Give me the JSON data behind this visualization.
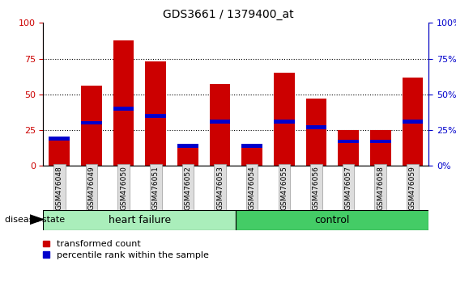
{
  "title": "GDS3661 / 1379400_at",
  "samples": [
    "GSM476048",
    "GSM476049",
    "GSM476050",
    "GSM476051",
    "GSM476052",
    "GSM476053",
    "GSM476054",
    "GSM476055",
    "GSM476056",
    "GSM476057",
    "GSM476058",
    "GSM476059"
  ],
  "red_values": [
    19,
    56,
    88,
    73,
    15,
    57,
    15,
    65,
    47,
    25,
    25,
    62
  ],
  "blue_values": [
    19,
    30,
    40,
    35,
    14,
    31,
    14,
    31,
    27,
    17,
    17,
    31
  ],
  "heart_failure_count": 6,
  "control_count": 6,
  "ylim": [
    0,
    100
  ],
  "y_ticks": [
    0,
    25,
    50,
    75,
    100
  ],
  "bar_color_red": "#CC0000",
  "bar_color_blue": "#0000CC",
  "heart_failure_color": "#AAEEBB",
  "control_color": "#44CC66",
  "axis_label_color_left": "#CC0000",
  "axis_label_color_right": "#0000CC",
  "tick_bg_color": "#DDDDDD",
  "legend_red_label": "transformed count",
  "legend_blue_label": "percentile rank within the sample",
  "disease_label": "disease state",
  "hf_label": "heart failure",
  "ctrl_label": "control"
}
